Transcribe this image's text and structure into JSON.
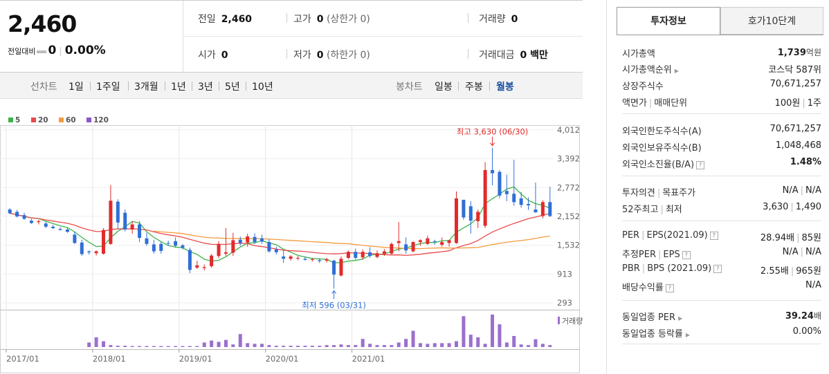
{
  "header": {
    "price": "2,460",
    "change_label": "전일대비",
    "change_value": "0",
    "change_pct": "0.00%",
    "row1": {
      "prev_label": "전일",
      "prev_value": "2,460",
      "high_label": "고가",
      "high_value": "0",
      "high_sub": "(상한가 0)",
      "vol_label": "거래량",
      "vol_value": "0"
    },
    "row2": {
      "open_label": "시가",
      "open_value": "0",
      "low_label": "저가",
      "low_value": "0",
      "low_sub": "(하한가 0)",
      "amount_label": "거래대금",
      "amount_value": "0 백만"
    }
  },
  "period_bar": {
    "line_caption": "선차트",
    "line_periods": [
      "1일",
      "1주일",
      "3개월",
      "1년",
      "3년",
      "5년",
      "10년"
    ],
    "candle_caption": "봉차트",
    "candle_periods": [
      "일봉",
      "주봉",
      "월봉"
    ],
    "selected_candle": "월봉"
  },
  "chart_data": {
    "type": "candlestick",
    "interval": "monthly",
    "legend": [
      {
        "label": "5",
        "color": "#3cb44b"
      },
      {
        "label": "20",
        "color": "#e84a4a"
      },
      {
        "label": "60",
        "color": "#f39a3d"
      },
      {
        "label": "120",
        "color": "#8b55c6"
      }
    ],
    "y_ticks": [
      "4,012",
      "3,392",
      "2,772",
      "2,152",
      "1,532",
      "913",
      "293"
    ],
    "ylim": [
      293,
      4012
    ],
    "x_ticks": [
      "2017/01",
      "2018/01",
      "2019/01",
      "2020/01",
      "2021/01"
    ],
    "max_annotation": "최고 3,630 (06/30)",
    "min_annotation": "최저 596 (03/31)",
    "volume_label": "거래량",
    "colors": {
      "up": "#e12b2b",
      "down": "#2f6fd6"
    },
    "candles": [
      {
        "o": 2300,
        "h": 2330,
        "l": 2200,
        "c": 2220
      },
      {
        "o": 2250,
        "h": 2290,
        "l": 2130,
        "c": 2150
      },
      {
        "o": 2180,
        "h": 2230,
        "l": 2080,
        "c": 2100
      },
      {
        "o": 2060,
        "h": 2100,
        "l": 1990,
        "c": 2010
      },
      {
        "o": 2030,
        "h": 2080,
        "l": 1980,
        "c": 2050
      },
      {
        "o": 2000,
        "h": 2040,
        "l": 1900,
        "c": 1930
      },
      {
        "o": 1930,
        "h": 1970,
        "l": 1880,
        "c": 1900
      },
      {
        "o": 1880,
        "h": 1920,
        "l": 1850,
        "c": 1860
      },
      {
        "o": 1870,
        "h": 1910,
        "l": 1800,
        "c": 1820
      },
      {
        "o": 1760,
        "h": 1830,
        "l": 1560,
        "c": 1580
      },
      {
        "o": 1590,
        "h": 1650,
        "l": 1300,
        "c": 1340
      },
      {
        "o": 1400,
        "h": 1420,
        "l": 1330,
        "c": 1380
      },
      {
        "o": 1360,
        "h": 1420,
        "l": 1310,
        "c": 1400
      },
      {
        "o": 1350,
        "h": 1900,
        "l": 1330,
        "c": 1860
      },
      {
        "o": 1560,
        "h": 2830,
        "l": 1540,
        "c": 2490
      },
      {
        "o": 2470,
        "h": 2520,
        "l": 1880,
        "c": 2020
      },
      {
        "o": 2230,
        "h": 2300,
        "l": 1830,
        "c": 1870
      },
      {
        "o": 1870,
        "h": 2050,
        "l": 1780,
        "c": 1980
      },
      {
        "o": 1980,
        "h": 2050,
        "l": 1600,
        "c": 1690
      },
      {
        "o": 1680,
        "h": 1800,
        "l": 1520,
        "c": 1560
      },
      {
        "o": 1550,
        "h": 1650,
        "l": 1350,
        "c": 1400
      },
      {
        "o": 1560,
        "h": 1600,
        "l": 1350,
        "c": 1410
      },
      {
        "o": 1580,
        "h": 1630,
        "l": 1520,
        "c": 1570
      },
      {
        "o": 1620,
        "h": 1700,
        "l": 1480,
        "c": 1520
      },
      {
        "o": 1530,
        "h": 1560,
        "l": 1440,
        "c": 1480
      },
      {
        "o": 1430,
        "h": 1480,
        "l": 930,
        "c": 1000
      },
      {
        "o": 1050,
        "h": 1200,
        "l": 1020,
        "c": 1100
      },
      {
        "o": 1040,
        "h": 1120,
        "l": 990,
        "c": 1060
      },
      {
        "o": 1080,
        "h": 1340,
        "l": 1050,
        "c": 1310
      },
      {
        "o": 1300,
        "h": 1620,
        "l": 1250,
        "c": 1560
      },
      {
        "o": 1350,
        "h": 1900,
        "l": 1300,
        "c": 1380
      },
      {
        "o": 1370,
        "h": 1800,
        "l": 1300,
        "c": 1640
      },
      {
        "o": 1650,
        "h": 1720,
        "l": 1520,
        "c": 1580
      },
      {
        "o": 1590,
        "h": 1780,
        "l": 1500,
        "c": 1720
      },
      {
        "o": 1710,
        "h": 1790,
        "l": 1560,
        "c": 1600
      },
      {
        "o": 1680,
        "h": 1760,
        "l": 1560,
        "c": 1610
      },
      {
        "o": 1600,
        "h": 1660,
        "l": 1370,
        "c": 1400
      },
      {
        "o": 1440,
        "h": 1500,
        "l": 1330,
        "c": 1380
      },
      {
        "o": 1290,
        "h": 1420,
        "l": 1150,
        "c": 1240
      },
      {
        "o": 1240,
        "h": 1320,
        "l": 1200,
        "c": 1290
      },
      {
        "o": 1250,
        "h": 1300,
        "l": 1210,
        "c": 1260
      },
      {
        "o": 1240,
        "h": 1290,
        "l": 1200,
        "c": 1220
      },
      {
        "o": 1220,
        "h": 1260,
        "l": 1180,
        "c": 1230
      },
      {
        "o": 1210,
        "h": 1250,
        "l": 1150,
        "c": 1190
      },
      {
        "o": 1200,
        "h": 1260,
        "l": 1160,
        "c": 1230
      },
      {
        "o": 1200,
        "h": 1220,
        "l": 596,
        "c": 900
      },
      {
        "o": 880,
        "h": 1290,
        "l": 860,
        "c": 1240
      },
      {
        "o": 1260,
        "h": 1420,
        "l": 1230,
        "c": 1390
      },
      {
        "o": 1390,
        "h": 1460,
        "l": 1220,
        "c": 1260
      },
      {
        "o": 1270,
        "h": 1440,
        "l": 1220,
        "c": 1390
      },
      {
        "o": 1380,
        "h": 1490,
        "l": 1260,
        "c": 1300
      },
      {
        "o": 1280,
        "h": 1420,
        "l": 1250,
        "c": 1360
      },
      {
        "o": 1350,
        "h": 1450,
        "l": 1300,
        "c": 1400
      },
      {
        "o": 1350,
        "h": 1590,
        "l": 1330,
        "c": 1560
      },
      {
        "o": 1580,
        "h": 2030,
        "l": 1400,
        "c": 1620
      },
      {
        "o": 1550,
        "h": 1700,
        "l": 1350,
        "c": 1420
      },
      {
        "o": 1400,
        "h": 1620,
        "l": 1380,
        "c": 1600
      },
      {
        "o": 1600,
        "h": 1660,
        "l": 1520,
        "c": 1640
      },
      {
        "o": 1560,
        "h": 1740,
        "l": 1540,
        "c": 1680
      },
      {
        "o": 1620,
        "h": 1650,
        "l": 1540,
        "c": 1610
      },
      {
        "o": 1540,
        "h": 1700,
        "l": 1500,
        "c": 1600
      },
      {
        "o": 1580,
        "h": 1650,
        "l": 1500,
        "c": 1640
      },
      {
        "o": 1580,
        "h": 2690,
        "l": 1560,
        "c": 2540
      },
      {
        "o": 2510,
        "h": 2510,
        "l": 2080,
        "c": 2130
      },
      {
        "o": 2370,
        "h": 2480,
        "l": 1780,
        "c": 2060
      },
      {
        "o": 2050,
        "h": 2300,
        "l": 1900,
        "c": 2250
      },
      {
        "o": 1950,
        "h": 3320,
        "l": 1900,
        "c": 3150
      },
      {
        "o": 3150,
        "h": 3630,
        "l": 2820,
        "c": 3080
      },
      {
        "o": 3110,
        "h": 3150,
        "l": 2540,
        "c": 2600
      },
      {
        "o": 2700,
        "h": 3050,
        "l": 2480,
        "c": 2630
      },
      {
        "o": 2640,
        "h": 3370,
        "l": 2380,
        "c": 2460
      },
      {
        "o": 2540,
        "h": 2680,
        "l": 2340,
        "c": 2400
      },
      {
        "o": 2420,
        "h": 2560,
        "l": 2290,
        "c": 2390
      },
      {
        "o": 2300,
        "h": 2880,
        "l": 2230,
        "c": 2240
      },
      {
        "o": 2160,
        "h": 2500,
        "l": 2110,
        "c": 2460
      },
      {
        "o": 2460,
        "h": 2790,
        "l": 2140,
        "c": 2160
      }
    ],
    "volume": [
      0,
      0,
      0,
      0,
      0,
      0,
      0,
      0,
      0,
      0,
      0,
      0,
      0,
      0,
      0,
      0,
      0,
      0,
      0,
      0,
      0,
      0,
      0,
      0,
      0,
      0,
      0,
      0,
      0,
      0,
      0,
      0,
      0,
      0,
      0,
      0,
      0,
      0,
      0,
      0,
      0,
      0,
      0,
      0,
      0,
      0,
      0,
      0,
      0,
      0,
      0,
      0,
      0,
      0,
      0,
      0,
      0,
      0,
      0,
      0,
      0,
      0,
      0,
      0,
      0,
      0,
      0,
      0,
      0,
      0,
      0,
      0,
      0,
      0,
      0,
      0
    ],
    "volume_rel": [
      0,
      0,
      0,
      0,
      0,
      0,
      0,
      0,
      0,
      0,
      0,
      0.14,
      0.3,
      0.18,
      0.06,
      0.04,
      0.04,
      0.03,
      0.03,
      0.03,
      0.03,
      0.03,
      0.03,
      0.03,
      0.03,
      0.03,
      0.03,
      0.14,
      0.2,
      0.16,
      0.22,
      0.08,
      0.4,
      0.12,
      0.1,
      0.1,
      0.06,
      0.04,
      0.04,
      0.04,
      0.04,
      0.04,
      0.04,
      0.04,
      0.06,
      0.06,
      0.08,
      0.06,
      0.06,
      0.25,
      0.1,
      0.06,
      0.06,
      0.06,
      0.14,
      0.25,
      0.5,
      0.12,
      0.1,
      0.12,
      0.12,
      0.12,
      0.18,
      0.95,
      0.38,
      0.3,
      0.1,
      1.0,
      0.7,
      0.14,
      0.34,
      0.08,
      0.06,
      0.24,
      0.1,
      0.06
    ],
    "ma_notes": "moving averages 5/20/60/120 are derived from candle closes"
  },
  "invest": {
    "tabs": [
      "투자정보",
      "호가10단계"
    ],
    "rows1": [
      {
        "k": "시가총액",
        "v": "1,739",
        "unit": "억원"
      },
      {
        "k": "시가총액순위",
        "v": "코스닥 587위"
      },
      {
        "k": "상장주식수",
        "v": "70,671,257"
      },
      {
        "k": "액면가",
        "k2": "매매단위",
        "v": "100원",
        "v2": "1주"
      }
    ],
    "rows2": [
      {
        "k": "외국인한도주식수(A)",
        "v": "70,671,257"
      },
      {
        "k": "외국인보유주식수(B)",
        "v": "1,048,468"
      },
      {
        "k": "외국인소진율(B/A)",
        "v": "1.48%"
      }
    ],
    "rows3": [
      {
        "k": "투자의견",
        "k2": "목표주가",
        "v": "N/A",
        "v2": "N/A"
      },
      {
        "k": "52주최고",
        "k2": "최저",
        "v": "3,630",
        "v2": "1,490"
      }
    ],
    "rows4": [
      {
        "k": "PER",
        "k2": "EPS(2021.09)",
        "v": "28.94배",
        "v2": "85원"
      },
      {
        "k": "추정PER",
        "k2": "EPS",
        "v": "N/A",
        "v2": "N/A"
      },
      {
        "k": "PBR",
        "k2": "BPS (2021.09)",
        "v": "2.55배",
        "v2": "965원"
      },
      {
        "k": "배당수익률",
        "v": "N/A"
      }
    ],
    "rows5": [
      {
        "k": "동일업종 PER",
        "v": "39.24",
        "unit": "배"
      },
      {
        "k": "동일업종 등락률",
        "v": "0.00%"
      }
    ]
  }
}
